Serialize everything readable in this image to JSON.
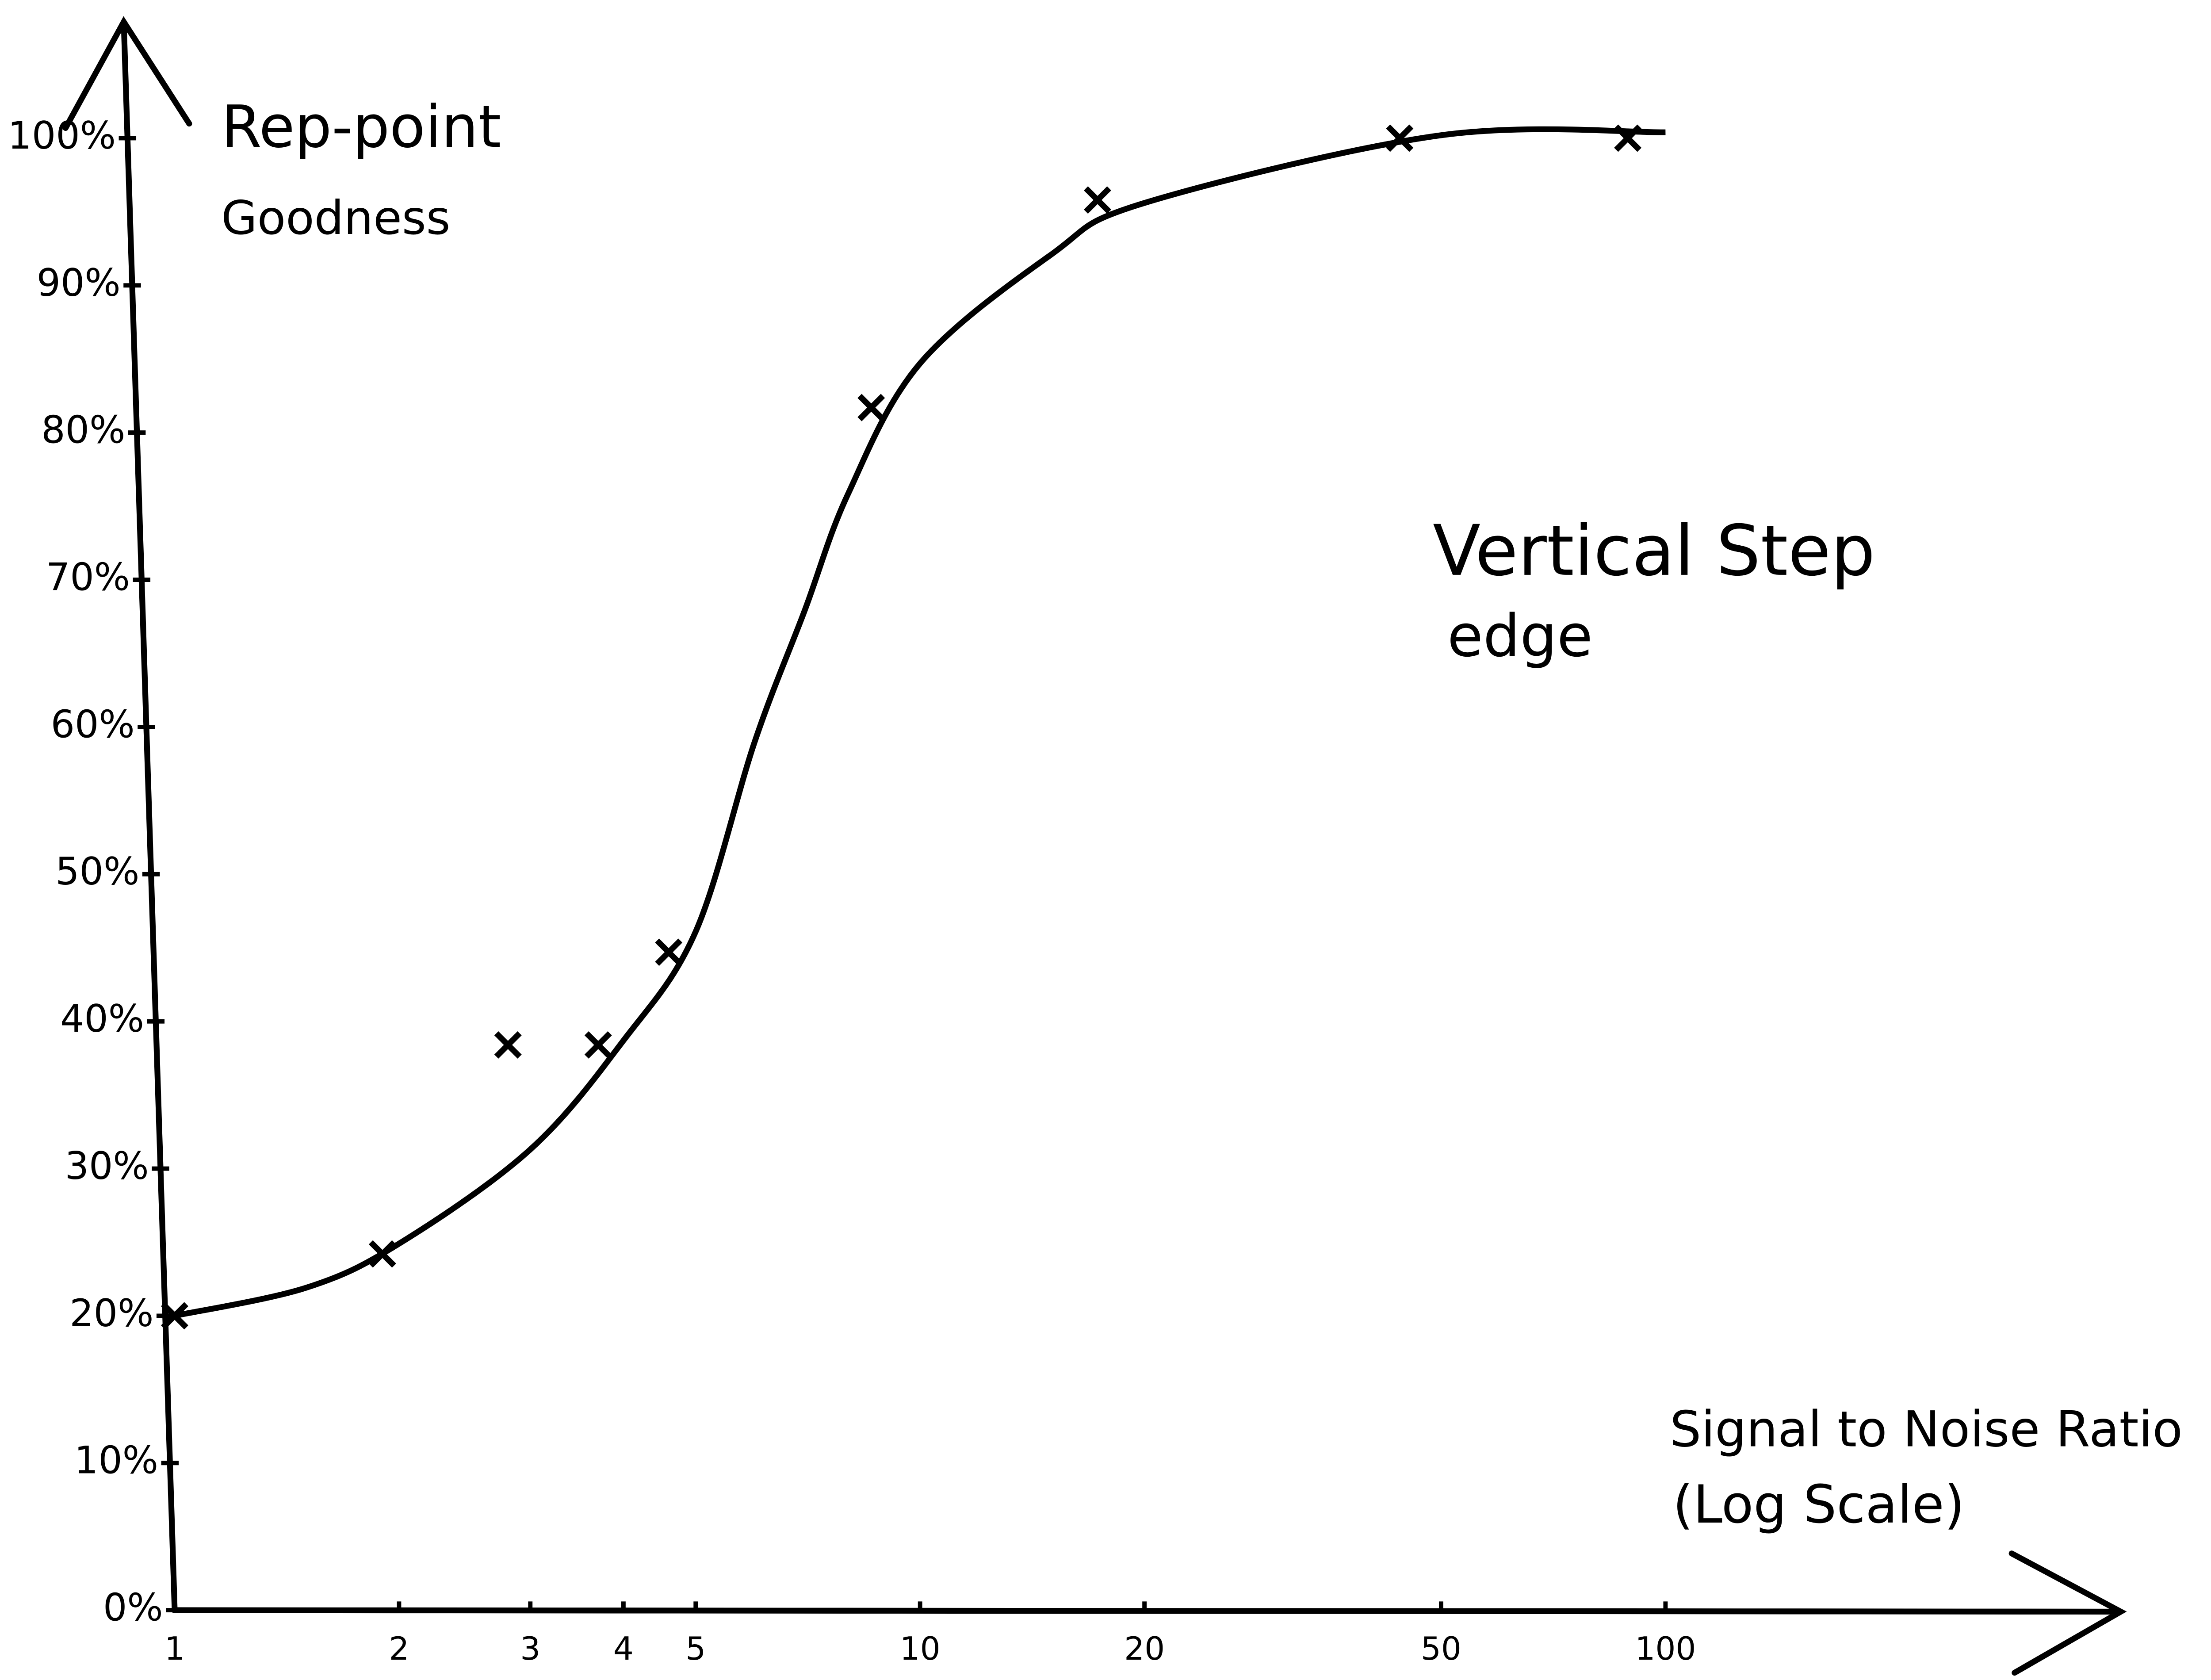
{
  "chart_data": {
    "type": "scatter",
    "ylabel": [
      "Rep-point",
      "Goodness"
    ],
    "xlabel": [
      "Signal to Noise Ratio",
      "(Log Scale)"
    ],
    "annotation": [
      "Vertical Step",
      "edge"
    ],
    "xscale": "log",
    "xlim": [
      1,
      100
    ],
    "xticks": [
      1,
      2,
      3,
      4,
      5,
      10,
      20,
      50,
      100
    ],
    "ylim": [
      0,
      100
    ],
    "yticks": [
      {
        "value": 0,
        "label": "0%"
      },
      {
        "value": 10,
        "label": "10%"
      },
      {
        "value": 20,
        "label": "20%"
      },
      {
        "value": 30,
        "label": "30%"
      },
      {
        "value": 40,
        "label": "40%"
      },
      {
        "value": 50,
        "label": "50%"
      },
      {
        "value": 60,
        "label": "60%"
      },
      {
        "value": 70,
        "label": "70%"
      },
      {
        "value": 80,
        "label": "80%"
      },
      {
        "value": 90,
        "label": "90%"
      },
      {
        "value": 100,
        "label": "100%"
      }
    ],
    "color": "#000000",
    "series": [
      {
        "style": "cross",
        "x": [
          1,
          1.9,
          2.8,
          3.7,
          4.6,
          8.6,
          17.3,
          44,
          89
        ],
        "values": [
          20,
          24.2,
          38.4,
          38.4,
          44.7,
          81.7,
          95.8,
          100,
          100
        ]
      },
      {
        "style": "line",
        "x": [
          1,
          1.5,
          2,
          3,
          4,
          5,
          6,
          7,
          8,
          10,
          15,
          20,
          50,
          100
        ],
        "values": [
          20,
          21.9,
          24.9,
          31.3,
          38.7,
          46.1,
          59,
          67.9,
          75.8,
          84.7,
          92.1,
          95.6,
          100.2,
          100.4
        ]
      }
    ]
  }
}
